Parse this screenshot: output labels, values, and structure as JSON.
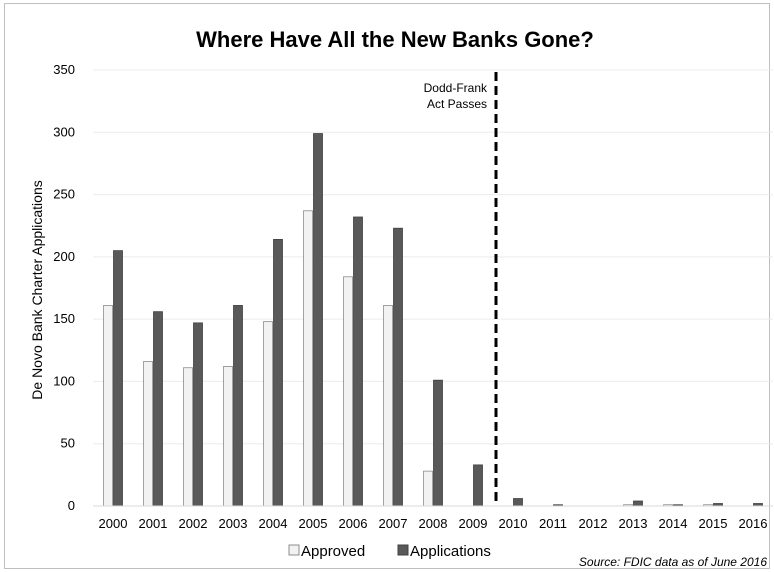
{
  "chart_data": {
    "type": "bar",
    "title": "Where Have All the New Banks Gone?",
    "xlabel": "",
    "ylabel": "De Novo Bank Charter Applications",
    "ylim": [
      0,
      350
    ],
    "yticks": [
      0,
      50,
      100,
      150,
      200,
      250,
      300,
      350
    ],
    "grid": true,
    "legend_position": "bottom",
    "categories": [
      "2000",
      "2001",
      "2002",
      "2003",
      "2004",
      "2005",
      "2006",
      "2007",
      "2008",
      "2009",
      "2010",
      "2011",
      "2012",
      "2013",
      "2014",
      "2015",
      "2016"
    ],
    "series": [
      {
        "name": "Approved",
        "color": "#f2f2f2",
        "stroke": "#8c8c8c",
        "values": [
          161,
          116,
          111,
          112,
          148,
          237,
          184,
          161,
          28,
          0,
          0,
          0,
          0,
          1,
          1,
          1,
          0
        ]
      },
      {
        "name": "Applications",
        "color": "#595959",
        "stroke": "#404040",
        "values": [
          205,
          156,
          147,
          161,
          214,
          299,
          232,
          223,
          101,
          33,
          6,
          1,
          0,
          4,
          1,
          2,
          2
        ]
      }
    ],
    "annotation": {
      "line1": "Dodd-Frank",
      "line2": "Act Passes",
      "at_category": "2010"
    },
    "source": "Source: FDIC data as of June 2016"
  }
}
